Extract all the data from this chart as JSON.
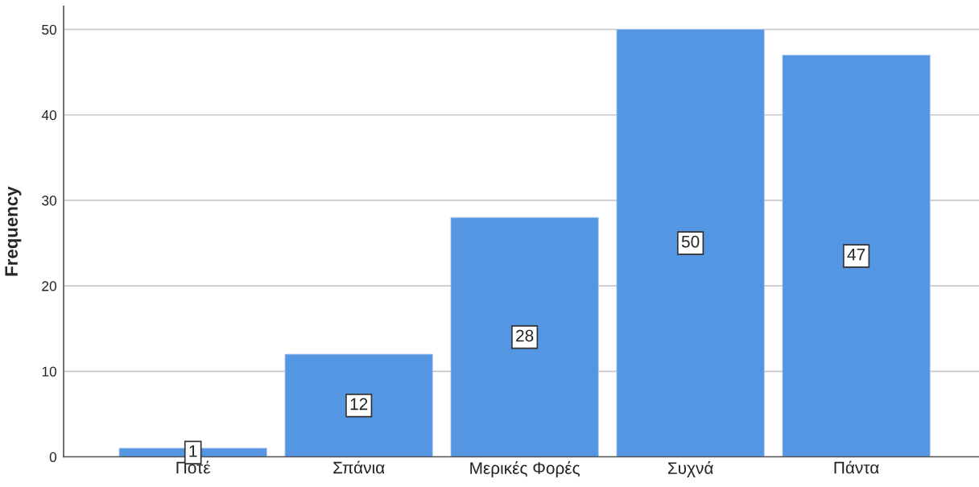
{
  "chart_data": {
    "type": "bar",
    "categories": [
      "Ποτέ",
      "Σπάνια",
      "Μερικές Φορές",
      "Συχνά",
      "Πάντα"
    ],
    "values": [
      1,
      12,
      28,
      50,
      47
    ],
    "color": "#5596e3",
    "ylabel": "Frequency",
    "ylim": [
      0,
      52.7
    ],
    "yticks": [
      0,
      10,
      20,
      30,
      40,
      50
    ],
    "grid": "y",
    "data_labels": true
  }
}
